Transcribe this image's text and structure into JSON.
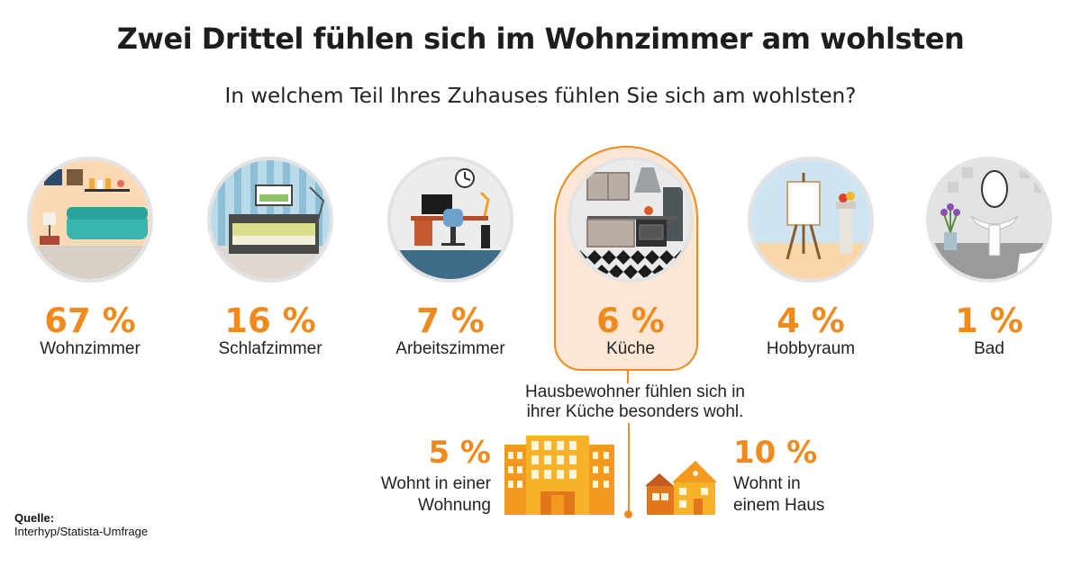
{
  "title": "Zwei Drittel fühlen sich im Wohnzimmer am wohlsten",
  "subtitle": "In welchem Teil Ihres Zuhauses fühlen Sie sich am wohlsten?",
  "chart_data": {
    "type": "bar",
    "title": "Zwei Drittel fühlen sich im Wohnzimmer am wohlsten",
    "subtitle": "In welchem Teil Ihres Zuhauses fühlen Sie sich am wohlsten?",
    "categories": [
      "Wohnzimmer",
      "Schlafzimmer",
      "Arbeitszimmer",
      "Küche",
      "Hobbyraum",
      "Bad"
    ],
    "values": [
      67,
      16,
      7,
      6,
      4,
      1
    ],
    "value_labels": [
      "67 %",
      "16 %",
      "7 %",
      "6 %",
      "4 %",
      "1 %"
    ],
    "unit": "%",
    "highlighted_category": "Küche",
    "breakdown": {
      "category": "Küche",
      "note": "Hausbewohner fühlen sich in ihrer Küche besonders wohl.",
      "items": [
        {
          "label": "Wohnt in einer Wohnung",
          "value": 5,
          "value_label": "5 %"
        },
        {
          "label": "Wohnt in einem Haus",
          "value": 10,
          "value_label": "10 %"
        }
      ]
    }
  },
  "categories": [
    {
      "pct": "67 %",
      "label": "Wohnzimmer",
      "icon": "living-room-icon"
    },
    {
      "pct": "16 %",
      "label": "Schlafzimmer",
      "icon": "bedroom-icon"
    },
    {
      "pct": "7 %",
      "label": "Arbeitszimmer",
      "icon": "office-icon"
    },
    {
      "pct": "6 %",
      "label": "Küche",
      "icon": "kitchen-icon"
    },
    {
      "pct": "4 %",
      "label": "Hobbyraum",
      "icon": "hobby-room-icon"
    },
    {
      "pct": "1 %",
      "label": "Bad",
      "icon": "bathroom-icon"
    }
  ],
  "kitchen_detail": {
    "note_line1": "Hausbewohner fühlen sich in",
    "note_line2": "ihrer Küche besonders wohl.",
    "apartment_pct": "5 %",
    "apartment_line1": "Wohnt in einer",
    "apartment_line2": "Wohnung",
    "house_pct": "10 %",
    "house_line1": "Wohnt in",
    "house_line2": "einem Haus"
  },
  "source": {
    "title": "Quelle:",
    "text": "Interhyp/Statista-Umfrage"
  },
  "colors": {
    "accent": "#f08a1c",
    "highlight_bg": "#fce7d6",
    "text": "#222222",
    "circle_border": "#e3e3e3"
  }
}
